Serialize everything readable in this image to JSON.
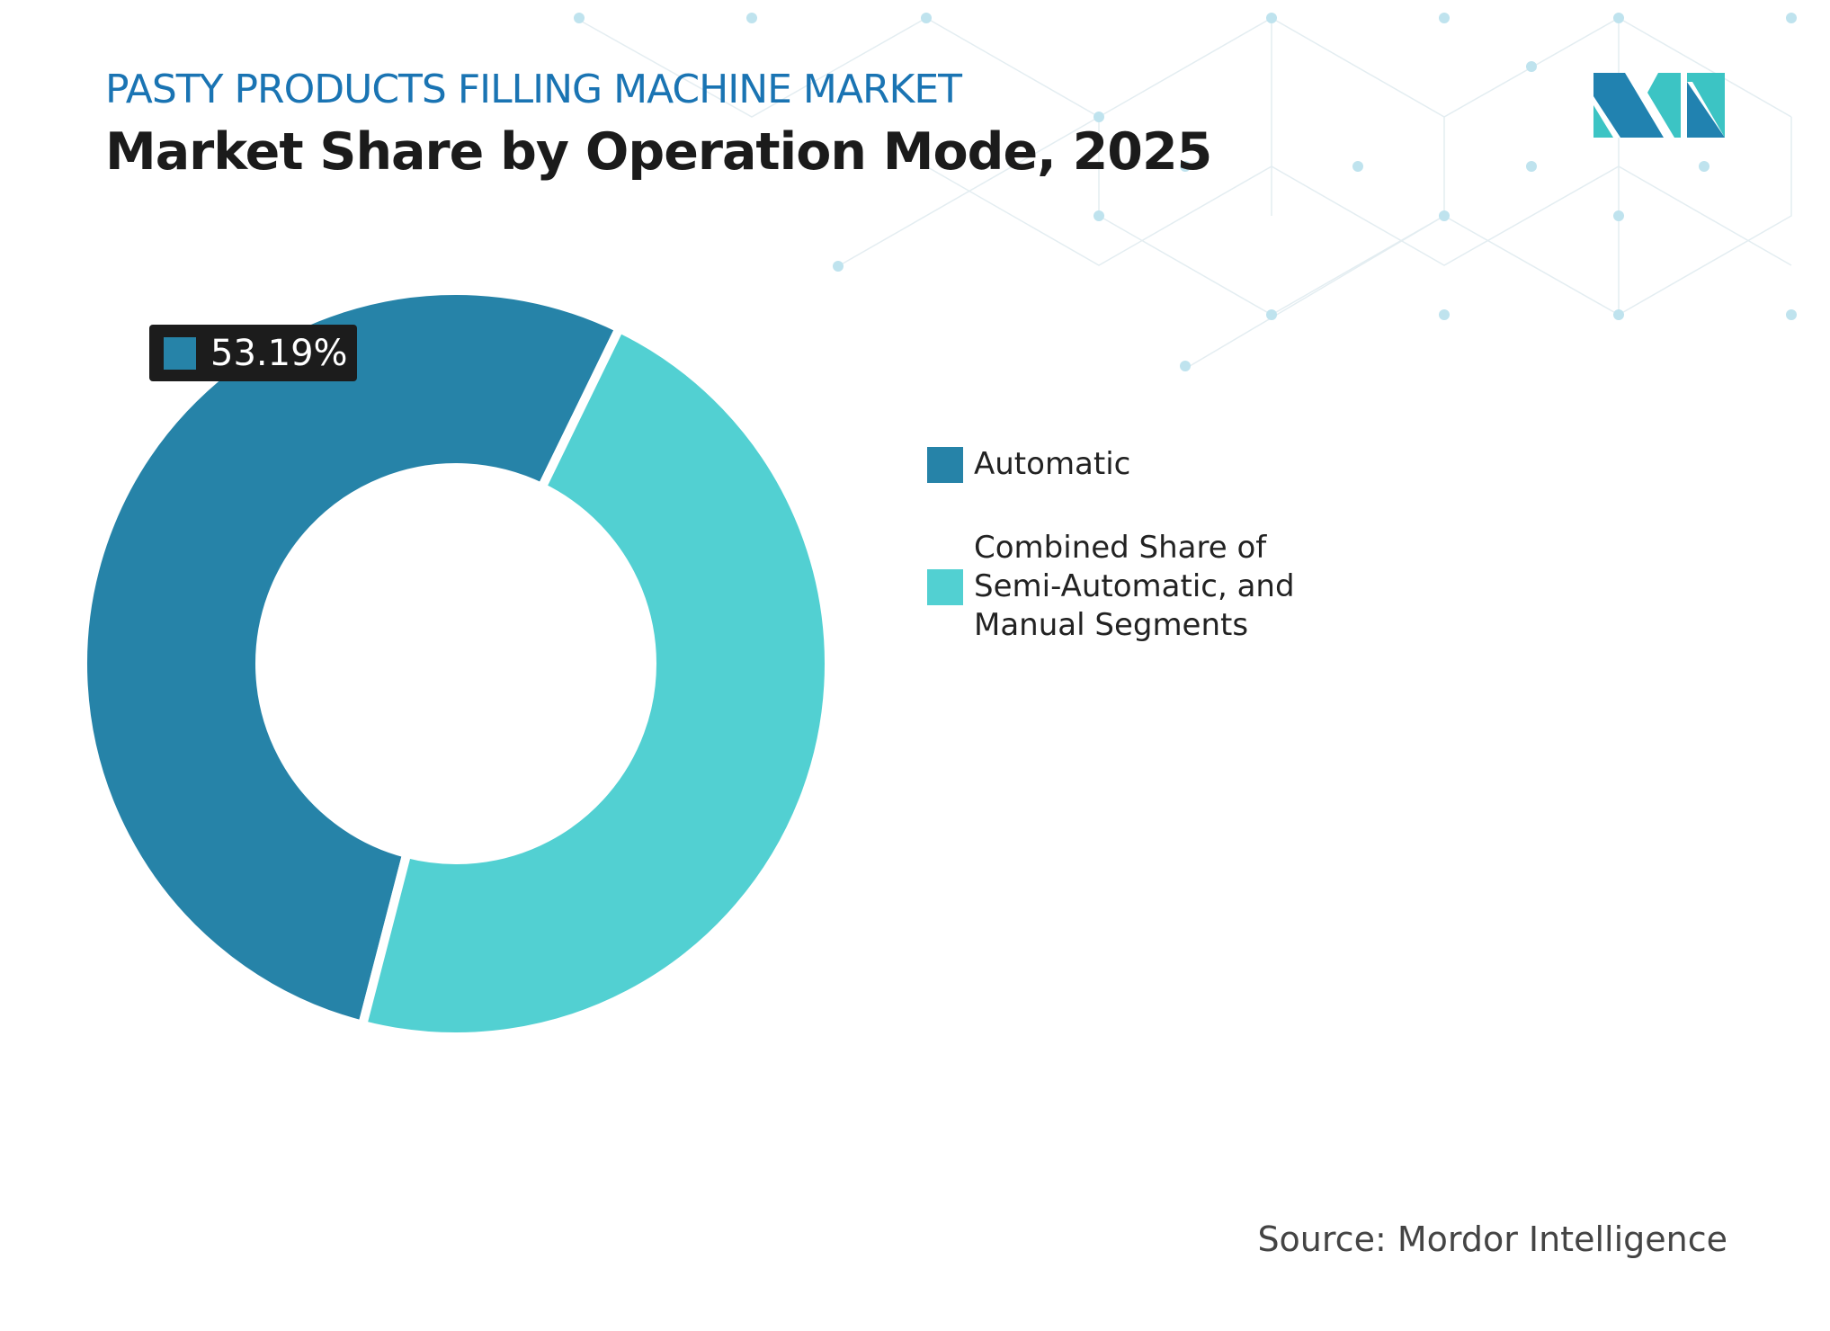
{
  "header": {
    "subtitle": "PASTY PRODUCTS FILLING MACHINE MARKET",
    "title": "Market Share by Operation Mode, 2025"
  },
  "chart_data": {
    "type": "pie",
    "variant": "donut",
    "categories": [
      "Automatic",
      "Combined Share of Semi-Automatic, and Manual Segments"
    ],
    "values": [
      53.19,
      46.81
    ],
    "colors": [
      "#2683a8",
      "#52d0d2"
    ],
    "data_labels": [
      {
        "category": "Automatic",
        "text": "53.19%"
      }
    ],
    "legend_placement": "right"
  },
  "source": "Source: Mordor Intelligence",
  "logo": {
    "text": "MI",
    "colors": [
      "#2182b0",
      "#3cc4c4"
    ]
  }
}
